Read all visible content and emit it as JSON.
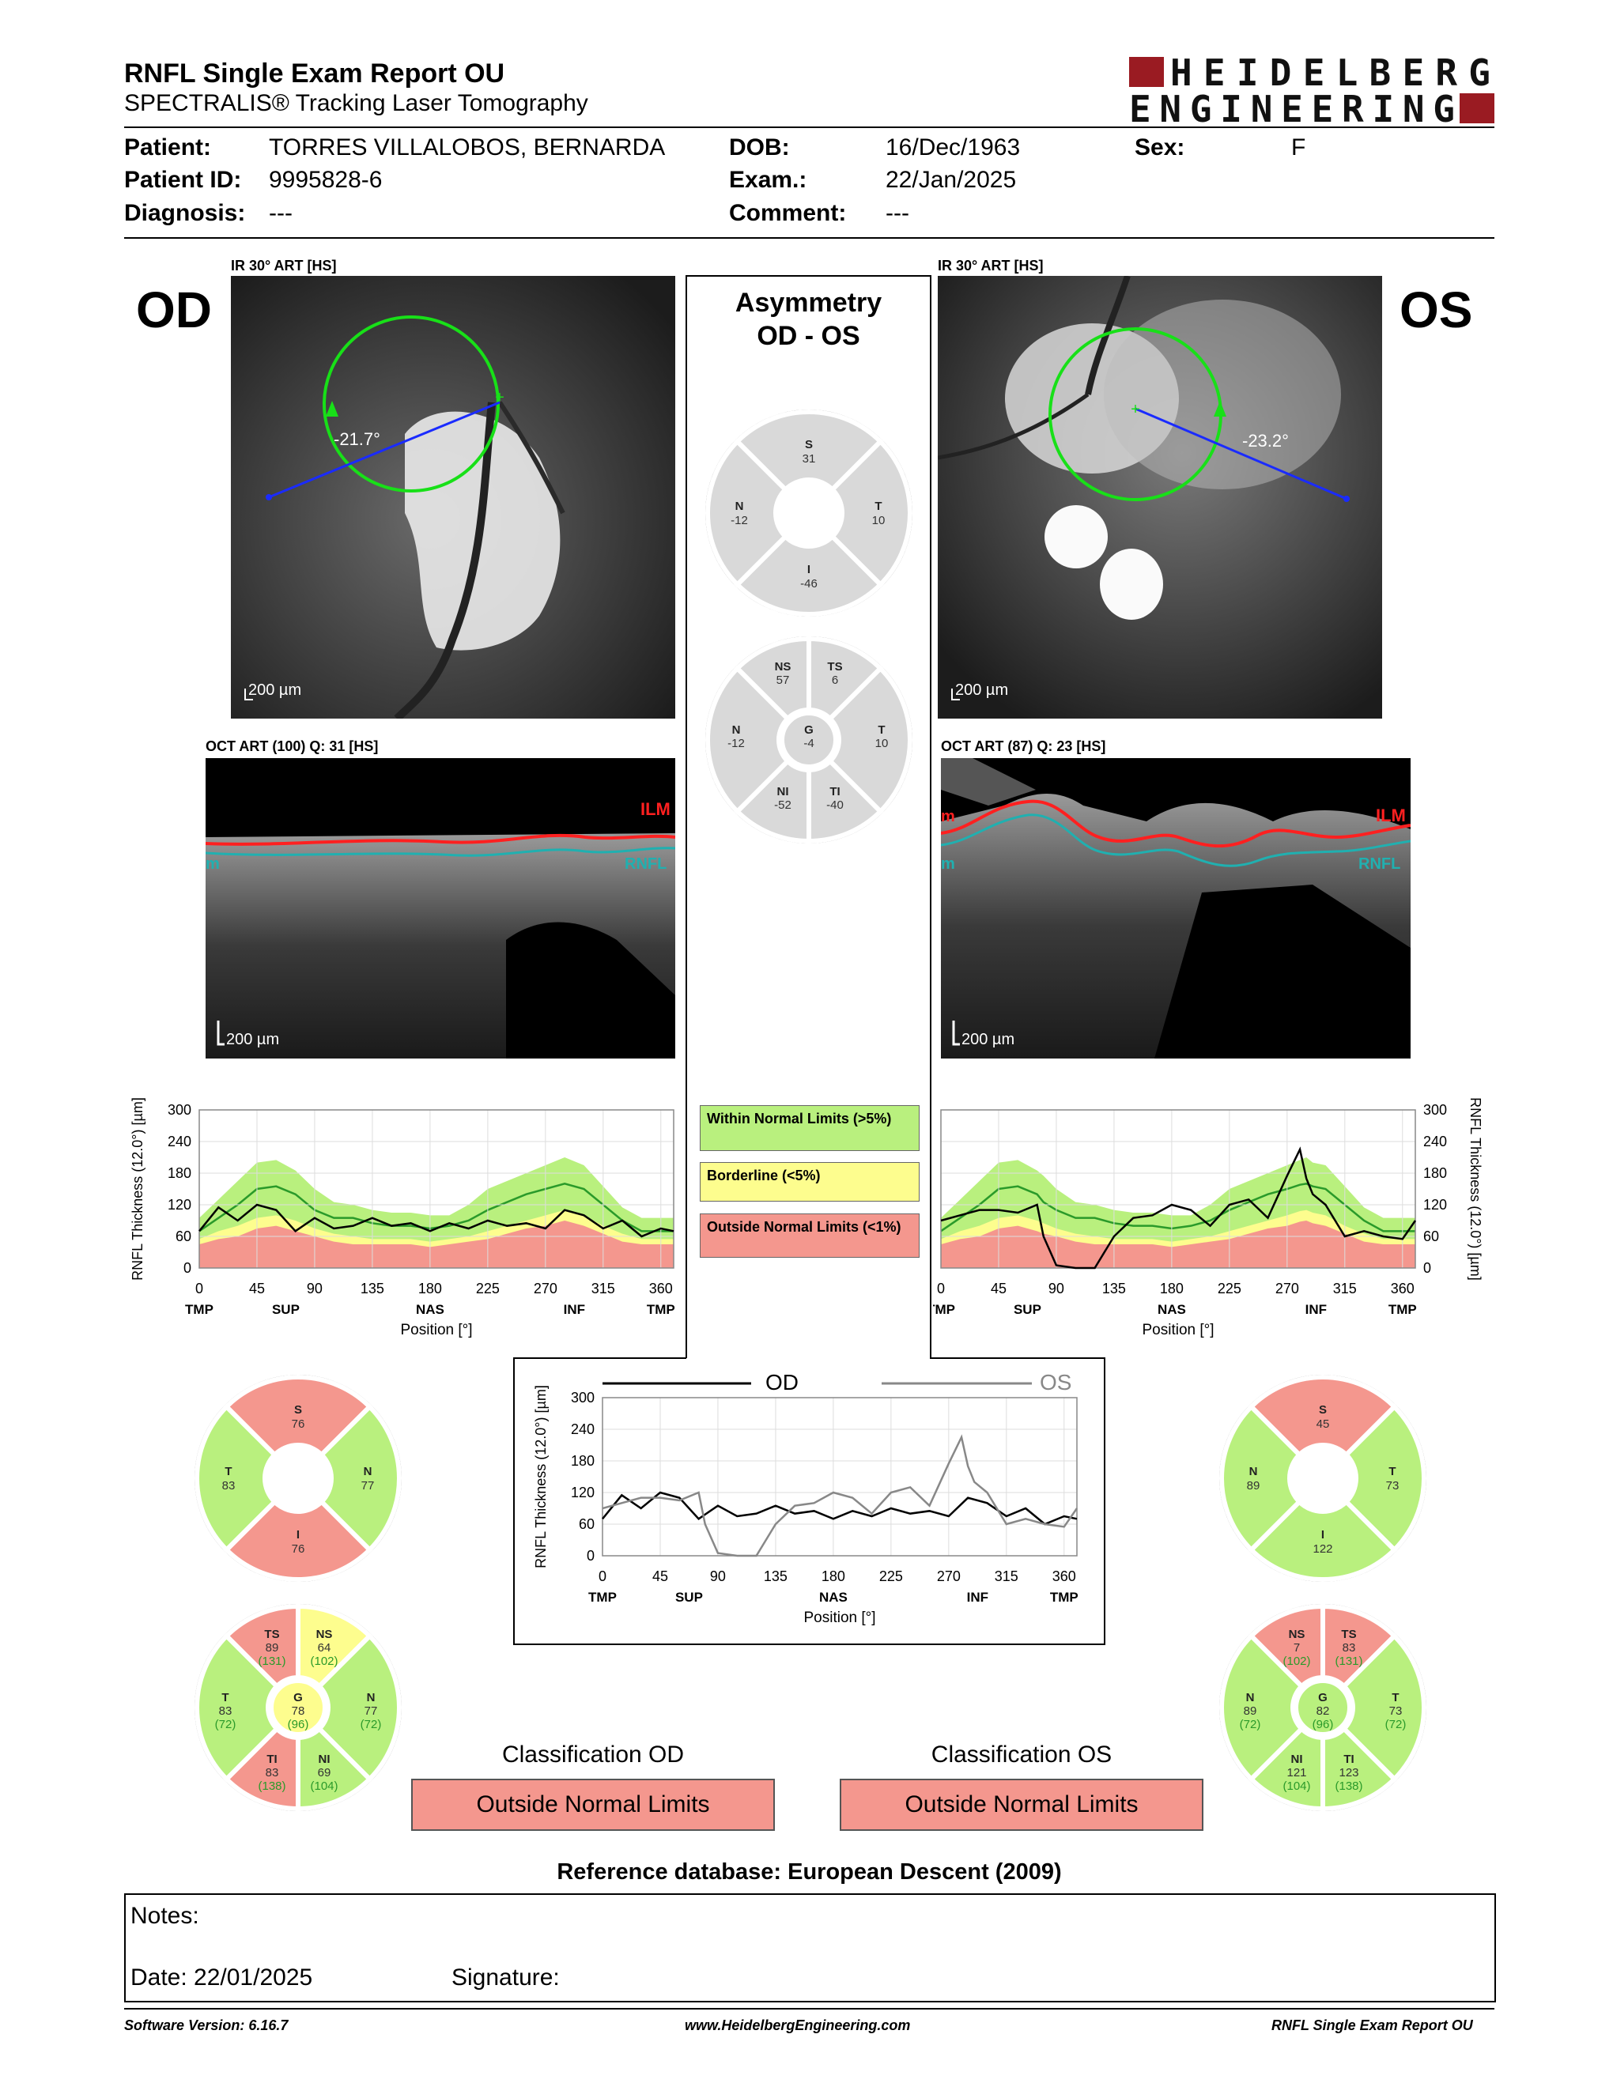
{
  "header": {
    "title": "RNFL Single Exam Report OU",
    "subtitle": "SPECTRALIS® Tracking Laser Tomography",
    "logo_line1": "HEIDELBERG",
    "logo_line2": "ENGINEERING"
  },
  "patient": {
    "name_label": "Patient:",
    "name": "TORRES VILLALOBOS, BERNARDA",
    "id_label": "Patient ID:",
    "id": "9995828-6",
    "diag_label": "Diagnosis:",
    "diag": "---",
    "dob_label": "DOB:",
    "dob": "16/Dec/1963",
    "exam_label": "Exam.:",
    "exam": "22/Jan/2025",
    "comment_label": "Comment:",
    "comment": "---",
    "sex_label": "Sex:",
    "sex": "F"
  },
  "od": {
    "eye": "OD",
    "ir_label": "IR 30° ART [HS]",
    "angle": "-21.7°",
    "scale": "200 µm",
    "oct_label": "OCT ART (100) Q: 31 [HS]",
    "ilm": "ILM",
    "rnfl": "RNFL",
    "m": "m",
    "classification_title": "Classification OD",
    "classification": "Outside Normal Limits",
    "sectors4": {
      "S": "76",
      "N": "77",
      "I": "76",
      "T": "83"
    },
    "sectors6": {
      "TS": {
        "v": "89",
        "r": "(131)"
      },
      "NS": {
        "v": "64",
        "r": "(102)"
      },
      "T": {
        "v": "83",
        "r": "(72)"
      },
      "G": {
        "v": "78",
        "r": "(96)"
      },
      "N": {
        "v": "77",
        "r": "(72)"
      },
      "TI": {
        "v": "83",
        "r": "(138)"
      },
      "NI": {
        "v": "69",
        "r": "(104)"
      }
    }
  },
  "os": {
    "eye": "OS",
    "ir_label": "IR 30° ART [HS]",
    "angle": "-23.2°",
    "scale": "200 µm",
    "oct_label": "OCT ART (87) Q: 23 [HS]",
    "ilm": "ILM",
    "rnfl": "RNFL",
    "m": "m",
    "classification_title": "Classification OS",
    "classification": "Outside Normal Limits",
    "sectors4": {
      "S": "45",
      "N": "89",
      "I": "122",
      "T": "73"
    },
    "sectors6": {
      "NS": {
        "v": "7",
        "r": "(102)"
      },
      "TS": {
        "v": "83",
        "r": "(131)"
      },
      "N": {
        "v": "89",
        "r": "(72)"
      },
      "G": {
        "v": "82",
        "r": "(96)"
      },
      "T": {
        "v": "73",
        "r": "(72)"
      },
      "NI": {
        "v": "121",
        "r": "(104)"
      },
      "TI": {
        "v": "123",
        "r": "(138)"
      }
    }
  },
  "asymmetry": {
    "title1": "Asymmetry",
    "title2": "OD - OS",
    "sectors4": {
      "S": "31",
      "N": "-12",
      "T": "10",
      "I": "-46"
    },
    "sectors6": {
      "NS": "57",
      "TS": "6",
      "N": "-12",
      "G": "-4",
      "T": "10",
      "NI": "-52",
      "TI": "-40"
    }
  },
  "legend": {
    "wnl": "Within Normal Limits (>5%)",
    "bl": "Borderline (<5%)",
    "onl": "Outside Normal Limits (<1%)"
  },
  "chart_data": [
    {
      "type": "line",
      "name": "od-profile",
      "ylabel": "RNFL Thickness (12.0°) [µm]",
      "xlabel": "Position [°]",
      "ylim": [
        0,
        300
      ],
      "xlim": [
        0,
        370
      ],
      "yticks": [
        "0",
        "60",
        "120",
        "180",
        "240",
        "300"
      ],
      "xticks": [
        "0",
        "45",
        "90",
        "135",
        "180",
        "225",
        "270",
        "315",
        "360"
      ],
      "region_labels": [
        "TMP",
        "SUP",
        "NAS",
        "INF",
        "TMP"
      ],
      "series": [
        {
          "name": "OD",
          "x": [
            0,
            15,
            30,
            45,
            60,
            75,
            90,
            105,
            120,
            135,
            150,
            165,
            180,
            195,
            210,
            225,
            240,
            255,
            270,
            285,
            300,
            315,
            330,
            345,
            360,
            370
          ],
          "y": [
            70,
            115,
            90,
            120,
            110,
            70,
            95,
            75,
            80,
            95,
            80,
            85,
            70,
            85,
            75,
            90,
            80,
            85,
            75,
            110,
            100,
            75,
            90,
            60,
            75,
            70
          ]
        }
      ],
      "normal_upper": [
        95,
        130,
        165,
        200,
        205,
        185,
        150,
        125,
        120,
        110,
        105,
        105,
        100,
        100,
        120,
        150,
        165,
        180,
        195,
        210,
        195,
        155,
        115,
        95,
        95,
        95
      ],
      "normal_mean": [
        70,
        95,
        120,
        150,
        155,
        140,
        110,
        95,
        95,
        85,
        80,
        80,
        75,
        80,
        90,
        110,
        125,
        140,
        150,
        160,
        150,
        120,
        90,
        70,
        70,
        70
      ],
      "border": [
        55,
        70,
        80,
        95,
        100,
        90,
        75,
        65,
        60,
        55,
        55,
        55,
        50,
        55,
        60,
        70,
        80,
        90,
        100,
        110,
        100,
        80,
        65,
        55,
        55,
        55
      ],
      "onl": [
        45,
        55,
        60,
        75,
        80,
        70,
        60,
        50,
        45,
        45,
        45,
        45,
        40,
        45,
        50,
        55,
        65,
        75,
        80,
        90,
        80,
        65,
        50,
        45,
        45,
        45
      ]
    },
    {
      "type": "line",
      "name": "os-profile",
      "ylabel": "RNFL Thickness (12.0°) [µm]",
      "xlabel": "Position [°]",
      "ylim": [
        0,
        300
      ],
      "xlim": [
        0,
        370
      ],
      "yticks": [
        "0",
        "60",
        "120",
        "180",
        "240",
        "300"
      ],
      "xticks": [
        "0",
        "45",
        "90",
        "135",
        "180",
        "225",
        "270",
        "315",
        "360"
      ],
      "region_labels": [
        "TMP",
        "SUP",
        "NAS",
        "INF",
        "TMP"
      ],
      "series": [
        {
          "name": "OS",
          "x": [
            0,
            15,
            30,
            45,
            60,
            75,
            80,
            90,
            105,
            120,
            135,
            150,
            165,
            180,
            195,
            210,
            225,
            240,
            255,
            270,
            280,
            285,
            290,
            300,
            315,
            330,
            345,
            360,
            370
          ],
          "y": [
            90,
            100,
            110,
            110,
            105,
            120,
            60,
            5,
            0,
            0,
            60,
            95,
            100,
            120,
            110,
            80,
            120,
            130,
            95,
            175,
            225,
            170,
            140,
            120,
            60,
            70,
            60,
            55,
            90
          ]
        }
      ],
      "normal_upper": [
        95,
        130,
        165,
        200,
        205,
        185,
        175,
        150,
        125,
        120,
        110,
        105,
        105,
        100,
        100,
        120,
        150,
        165,
        180,
        195,
        205,
        210,
        200,
        195,
        155,
        115,
        95,
        95,
        95
      ],
      "normal_mean": [
        70,
        95,
        120,
        150,
        155,
        140,
        125,
        110,
        95,
        95,
        85,
        80,
        80,
        75,
        80,
        90,
        110,
        125,
        140,
        150,
        158,
        160,
        155,
        150,
        120,
        90,
        70,
        70,
        70
      ],
      "border": [
        55,
        70,
        80,
        95,
        100,
        90,
        85,
        75,
        65,
        60,
        55,
        55,
        55,
        50,
        55,
        60,
        70,
        80,
        90,
        100,
        108,
        110,
        105,
        100,
        80,
        65,
        55,
        55,
        55
      ],
      "onl": [
        45,
        55,
        60,
        75,
        80,
        70,
        65,
        60,
        50,
        45,
        45,
        45,
        45,
        40,
        45,
        50,
        55,
        65,
        75,
        80,
        88,
        90,
        85,
        80,
        65,
        50,
        45,
        45,
        45
      ]
    },
    {
      "type": "line",
      "name": "compare-profile",
      "ylabel": "RNFL Thickness (12.0°) [µm]",
      "xlabel": "Position [°]",
      "ylim": [
        0,
        300
      ],
      "xlim": [
        0,
        370
      ],
      "yticks": [
        "0",
        "60",
        "120",
        "180",
        "240",
        "300"
      ],
      "xticks": [
        "0",
        "45",
        "90",
        "135",
        "180",
        "225",
        "270",
        "315",
        "360"
      ],
      "region_labels": [
        "TMP",
        "SUP",
        "NAS",
        "INF",
        "TMP"
      ],
      "series": [
        {
          "name": "OD",
          "x": [
            0,
            15,
            30,
            45,
            60,
            75,
            90,
            105,
            120,
            135,
            150,
            165,
            180,
            195,
            210,
            225,
            240,
            255,
            270,
            285,
            300,
            315,
            330,
            345,
            360,
            370
          ],
          "y": [
            70,
            115,
            90,
            120,
            110,
            70,
            95,
            75,
            80,
            95,
            80,
            85,
            70,
            85,
            75,
            90,
            80,
            85,
            75,
            110,
            100,
            75,
            90,
            60,
            75,
            70
          ]
        },
        {
          "name": "OS",
          "x": [
            0,
            15,
            30,
            45,
            60,
            75,
            80,
            90,
            105,
            120,
            135,
            150,
            165,
            180,
            195,
            210,
            225,
            240,
            255,
            270,
            280,
            285,
            290,
            300,
            315,
            330,
            345,
            360,
            370
          ],
          "y": [
            90,
            100,
            110,
            110,
            105,
            120,
            60,
            5,
            0,
            0,
            60,
            95,
            100,
            120,
            110,
            80,
            120,
            130,
            95,
            175,
            225,
            170,
            140,
            120,
            60,
            70,
            60,
            55,
            90
          ]
        }
      ]
    }
  ],
  "reference": "Reference database: European Descent (2009)",
  "notes": {
    "label": "Notes:",
    "date": "Date: 22/01/2025",
    "signature": "Signature:"
  },
  "footer": {
    "version": "Software Version: 6.16.7",
    "url": "www.HeidelbergEngineering.com",
    "report": "RNFL Single Exam Report OU"
  },
  "colors": {
    "wnl": "#b9f07e",
    "bl": "#fdfd8e",
    "onl": "#f4978e",
    "green_line": "#2a9a2a",
    "ilm": "#ff2020",
    "rnfl": "#20b0b0"
  }
}
